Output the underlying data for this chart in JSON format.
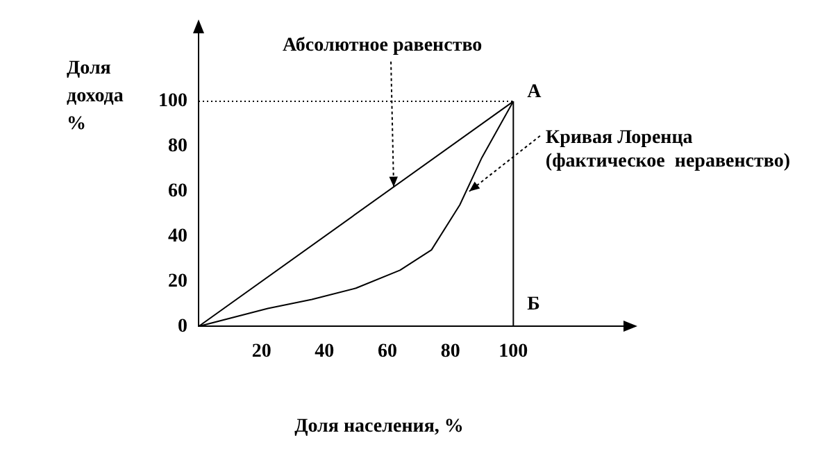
{
  "chart_data": {
    "type": "line",
    "xlabel": "Доля населения, %",
    "ylabel": "Доля дохода %",
    "xlim": [
      0,
      135
    ],
    "ylim": [
      0,
      130
    ],
    "xticks": [
      20,
      40,
      60,
      80,
      100
    ],
    "yticks": [
      0,
      20,
      40,
      60,
      80,
      100
    ],
    "grid": false,
    "legend": false,
    "marker": "none",
    "series": [
      {
        "color": "#000000",
        "x": [
          0,
          100
        ],
        "values": [
          0,
          100
        ]
      },
      {
        "color": "#000000",
        "x": [
          0,
          22,
          36,
          50,
          64,
          74,
          83,
          90,
          100
        ],
        "values": [
          0,
          8,
          12,
          17,
          25,
          34,
          54,
          75,
          100
        ]
      }
    ],
    "ref_lines": [
      {
        "axis": "y",
        "value": 100,
        "line_style": "dotted",
        "color": "#000000"
      },
      {
        "axis": "x",
        "value": 100,
        "line_style": "solid",
        "color": "#000000"
      }
    ],
    "annotations": [
      {
        "text": "Абсолютное равенство",
        "x": 62,
        "y": 62
      },
      {
        "text": "Кривая Лоренца\n(фактическое  неравенство)",
        "x": 86,
        "y": 60
      },
      {
        "text": "А",
        "x": 100,
        "y": 100
      },
      {
        "text": "Б",
        "x": 100,
        "y": 0
      }
    ]
  }
}
